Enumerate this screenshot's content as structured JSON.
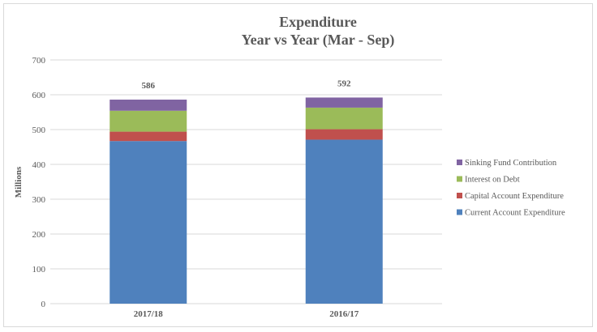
{
  "chart_data": {
    "type": "bar",
    "stacked": true,
    "title": "Expenditure",
    "subtitle": "Year vs Year (Mar - Sep)",
    "xlabel": "",
    "ylabel": "Millions",
    "ylim": [
      0,
      700
    ],
    "yticks": [
      0,
      100,
      200,
      300,
      400,
      500,
      600,
      700
    ],
    "grid": true,
    "legend_position": "right",
    "categories": [
      "2017/18",
      "2016/17"
    ],
    "totals": [
      586,
      592
    ],
    "series": [
      {
        "name": "Current Account Expenditure",
        "color": "#4f81bd",
        "values": [
          467,
          471
        ]
      },
      {
        "name": "Capital Account Expenditure",
        "color": "#c0504d",
        "values": [
          27,
          30
        ]
      },
      {
        "name": "Interest on Debt",
        "color": "#9bbb59",
        "values": [
          60,
          62
        ]
      },
      {
        "name": "Sinking Fund Contribution",
        "color": "#8064a2",
        "values": [
          32,
          29
        ]
      }
    ]
  }
}
